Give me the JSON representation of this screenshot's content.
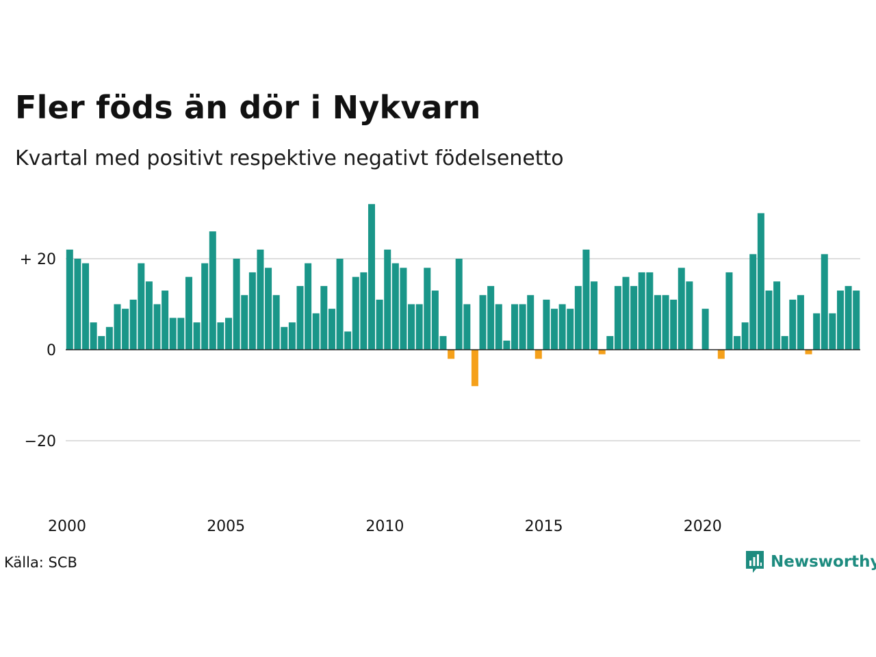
{
  "title": "Fler föds än dör i Nykvarn",
  "subtitle": "Kvartal med positivt respektive negativt födelsenetto",
  "source": "Källa: SCB",
  "brand": {
    "name": "Newsworthy",
    "icon": "newsworthy-logo-icon"
  },
  "colors": {
    "positive": "#1a9689",
    "negative": "#f5a01a",
    "grid": "#dddddd",
    "zero_line": "#222222",
    "brand": "#1d8b7f"
  },
  "chart_data": {
    "type": "bar",
    "x_start": "2000 Q1",
    "x_ticks": [
      "2000",
      "2005",
      "2010",
      "2015",
      "2020"
    ],
    "y_ticks": [
      {
        "value": 20,
        "label": "+ 20"
      },
      {
        "value": 0,
        "label": "0"
      },
      {
        "value": -20,
        "label": "−20"
      }
    ],
    "ylim": [
      -34,
      34
    ],
    "grid": true,
    "values": [
      22,
      20,
      19,
      6,
      3,
      5,
      10,
      9,
      11,
      19,
      15,
      10,
      13,
      7,
      7,
      16,
      6,
      19,
      26,
      6,
      7,
      20,
      12,
      17,
      22,
      18,
      12,
      5,
      6,
      14,
      19,
      8,
      14,
      9,
      20,
      4,
      16,
      17,
      32,
      11,
      22,
      19,
      18,
      10,
      10,
      18,
      13,
      3,
      -2,
      20,
      10,
      -8,
      12,
      14,
      10,
      2,
      10,
      10,
      12,
      -2,
      11,
      9,
      10,
      9,
      14,
      22,
      15,
      -1,
      3,
      14,
      16,
      14,
      17,
      17,
      12,
      12,
      11,
      18,
      15,
      0,
      9,
      0,
      -2,
      17,
      3,
      6,
      21,
      30,
      13,
      15,
      3,
      11,
      12,
      -1,
      8,
      21,
      8,
      13,
      14,
      13
    ]
  }
}
